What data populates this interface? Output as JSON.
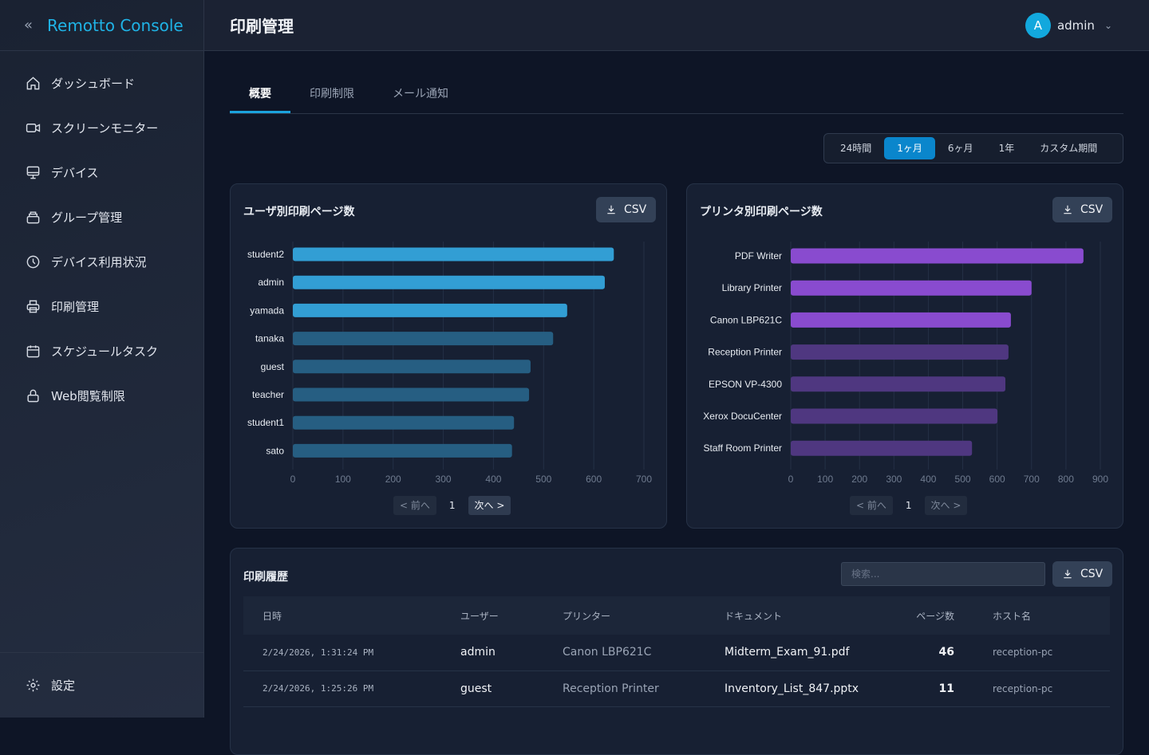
{
  "app": {
    "title": "Remotto Console",
    "collapse_icon": "double-chevron-left"
  },
  "sidebar": {
    "items": [
      {
        "label": "ダッシュボード",
        "icon": "home"
      },
      {
        "label": "スクリーンモニター",
        "icon": "video"
      },
      {
        "label": "デバイス",
        "icon": "monitor"
      },
      {
        "label": "グループ管理",
        "icon": "stack"
      },
      {
        "label": "デバイス利用状況",
        "icon": "clock"
      },
      {
        "label": "印刷管理",
        "icon": "printer"
      },
      {
        "label": "スケジュールタスク",
        "icon": "calendar"
      },
      {
        "label": "Web閲覧制限",
        "icon": "lock"
      }
    ],
    "settings": "設定"
  },
  "header": {
    "title": "印刷管理",
    "user": {
      "initial": "A",
      "name": "admin"
    }
  },
  "tabs": [
    {
      "label": "概要",
      "active": true
    },
    {
      "label": "印刷制限"
    },
    {
      "label": "メール通知"
    }
  ],
  "range": {
    "options": [
      "24時間",
      "1ヶ月",
      "6ヶ月",
      "1年",
      "カスタム期間"
    ],
    "selected": "1ヶ月"
  },
  "csv_label": "CSV",
  "pager": {
    "prev": "< 前へ",
    "next": "次へ >",
    "page": "1"
  },
  "chart_data": [
    {
      "type": "bar",
      "orientation": "horizontal",
      "title": "ユーザ別印刷ページ数",
      "categories": [
        "student2",
        "admin",
        "yamada",
        "tanaka",
        "guest",
        "teacher",
        "student1",
        "sato"
      ],
      "values": [
        640,
        622,
        547,
        519,
        474,
        471,
        441,
        437
      ],
      "xlim": [
        0,
        700
      ],
      "xticks": [
        0,
        100,
        200,
        300,
        400,
        500,
        600,
        700
      ],
      "grid": true,
      "colors": {
        "highlight": "#329ed4",
        "normal": "#265e82"
      },
      "highlight_top": 3
    },
    {
      "type": "bar",
      "orientation": "horizontal",
      "title": "プリンタ別印刷ページ数",
      "categories": [
        "PDF Writer",
        "Library Printer",
        "Canon LBP621C",
        "Reception Printer",
        "EPSON VP-4300",
        "Xerox DocuCenter",
        "Staff Room Printer"
      ],
      "values": [
        851,
        700,
        640,
        633,
        624,
        601,
        527
      ],
      "xlim": [
        0,
        900
      ],
      "xticks": [
        0,
        100,
        200,
        300,
        400,
        500,
        600,
        700,
        800,
        900
      ],
      "grid": true,
      "colors": {
        "highlight": "#894bcf",
        "normal": "#4f3780"
      },
      "highlight_top": 3
    }
  ],
  "history": {
    "title": "印刷履歴",
    "search_placeholder": "検索...",
    "columns": [
      "日時",
      "ユーザー",
      "プリンター",
      "ドキュメント",
      "ページ数",
      "ホスト名"
    ],
    "rows": [
      [
        "2/24/2026, 1:31:24 PM",
        "admin",
        "Canon LBP621C",
        "Midterm_Exam_91.pdf",
        "46",
        "reception-pc"
      ],
      [
        "2/24/2026, 1:25:26 PM",
        "guest",
        "Reception Printer",
        "Inventory_List_847.pptx",
        "11",
        "reception-pc"
      ]
    ]
  }
}
